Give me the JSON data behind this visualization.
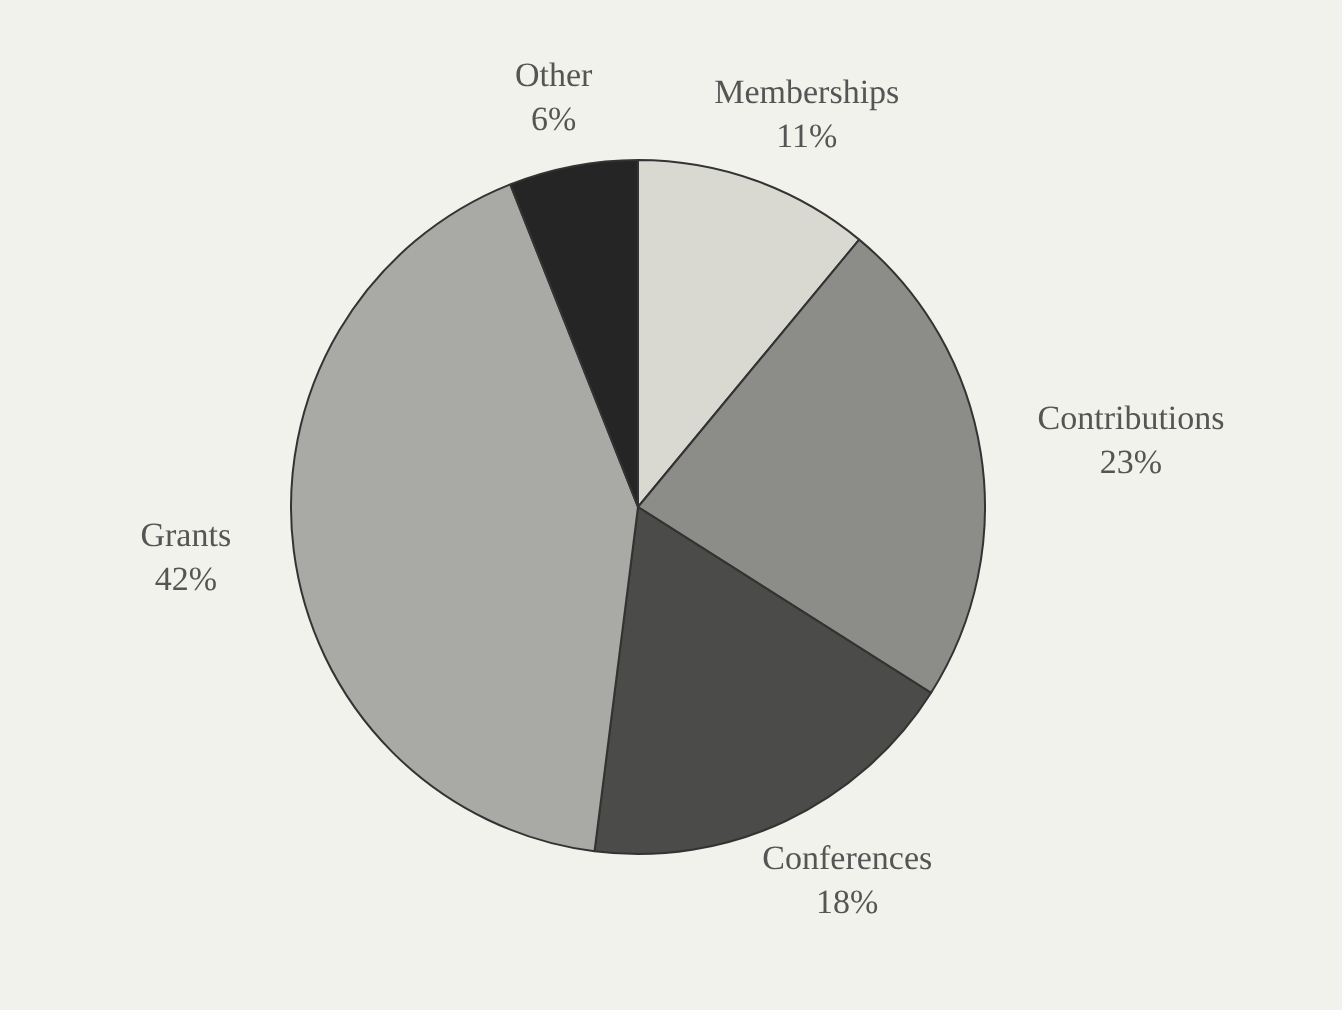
{
  "chart_data": {
    "type": "pie",
    "categories": [
      "Memberships",
      "Contributions",
      "Conferences",
      "Grants",
      "Other"
    ],
    "values": [
      11,
      23,
      18,
      42,
      6
    ],
    "value_labels": [
      "11%",
      "23%",
      "18%",
      "42%",
      "6%"
    ],
    "colors": [
      "#d9d9d2",
      "#8c8c89",
      "#4b4b49",
      "#a9a9a6",
      "#252525"
    ],
    "legend": false
  }
}
